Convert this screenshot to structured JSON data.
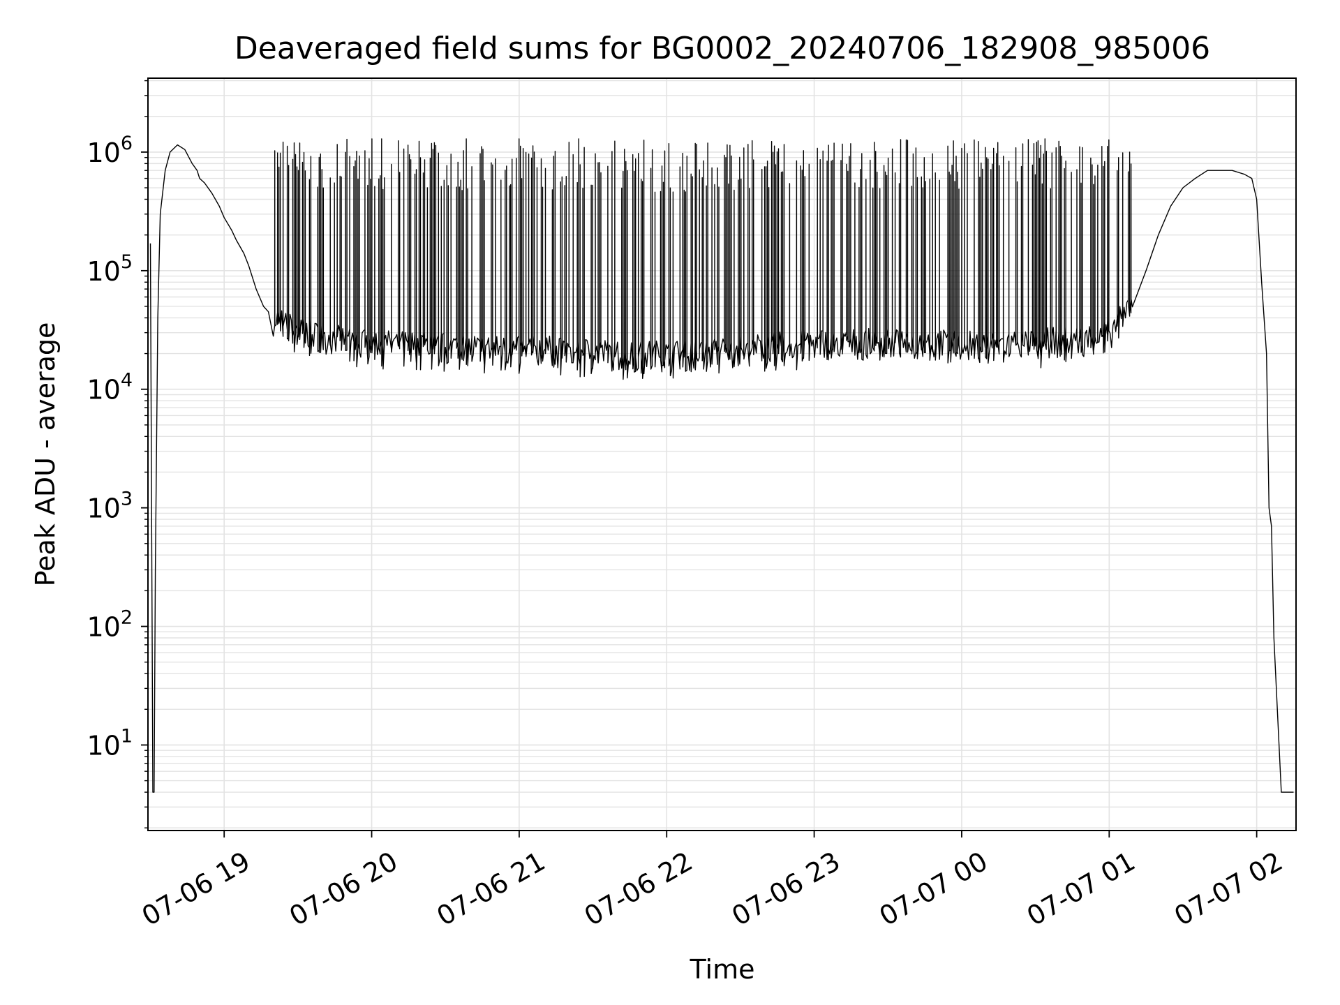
{
  "chart_data": {
    "type": "line",
    "title": "Deaveraged field sums for BG0002_20240706_182908_985006",
    "xlabel": "Time",
    "ylabel": "Peak ADU - average",
    "y_scale": "log",
    "grid": true,
    "grid_minor_y": true,
    "xlim": [
      "2024-07-06 18:29",
      "2024-07-07 02:16"
    ],
    "ylim": [
      1.9,
      4200000
    ],
    "x_ticks": [
      {
        "label": "07-06 19",
        "value": "2024-07-06 19:00"
      },
      {
        "label": "07-06 20",
        "value": "2024-07-06 20:00"
      },
      {
        "label": "07-06 21",
        "value": "2024-07-06 21:00"
      },
      {
        "label": "07-06 22",
        "value": "2024-07-06 22:00"
      },
      {
        "label": "07-06 23",
        "value": "2024-07-06 23:00"
      },
      {
        "label": "07-07 00",
        "value": "2024-07-07 00:00"
      },
      {
        "label": "07-07 01",
        "value": "2024-07-07 01:00"
      },
      {
        "label": "07-07 02",
        "value": "2024-07-07 02:00"
      }
    ],
    "y_ticks": [
      {
        "base": "10",
        "exp": "1",
        "value": 10
      },
      {
        "base": "10",
        "exp": "2",
        "value": 100
      },
      {
        "base": "10",
        "exp": "3",
        "value": 1000
      },
      {
        "base": "10",
        "exp": "4",
        "value": 10000
      },
      {
        "base": "10",
        "exp": "5",
        "value": 100000
      },
      {
        "base": "10",
        "exp": "6",
        "value": 1000000
      }
    ],
    "line_color": "#000000",
    "grid_color": "#e3e3e3",
    "series": [
      {
        "x": [
          "2024-07-06 18:30",
          "2024-07-06 18:31",
          "2024-07-06 18:31:30",
          "2024-07-06 18:32",
          "2024-07-06 18:33",
          "2024-07-06 18:34",
          "2024-07-06 18:36",
          "2024-07-06 18:38",
          "2024-07-06 18:41",
          "2024-07-06 18:44",
          "2024-07-06 18:47",
          "2024-07-06 18:49",
          "2024-07-06 18:50",
          "2024-07-06 18:52",
          "2024-07-06 18:55",
          "2024-07-06 18:58",
          "2024-07-06 19:00",
          "2024-07-06 19:03",
          "2024-07-06 19:05",
          "2024-07-06 19:08",
          "2024-07-06 19:10",
          "2024-07-06 19:13",
          "2024-07-06 19:16",
          "2024-07-06 19:18",
          "2024-07-06 19:20",
          "2024-07-06 19:22",
          "2024-07-06 19:25",
          "2024-07-06 19:30",
          "2024-07-06 19:35",
          "2024-07-06 19:40",
          "2024-07-06 19:45",
          "2024-07-06 19:50",
          "2024-07-06 19:55",
          "2024-07-06 20:00",
          "2024-07-06 20:10",
          "2024-07-06 20:20",
          "2024-07-06 20:30",
          "2024-07-06 20:40",
          "2024-07-06 20:50",
          "2024-07-06 21:00",
          "2024-07-06 21:10",
          "2024-07-06 21:20",
          "2024-07-06 21:30",
          "2024-07-06 21:40",
          "2024-07-06 21:50",
          "2024-07-06 22:00",
          "2024-07-06 22:10",
          "2024-07-06 22:20",
          "2024-07-06 22:30",
          "2024-07-06 22:40",
          "2024-07-06 22:50",
          "2024-07-06 23:00",
          "2024-07-06 23:10",
          "2024-07-06 23:20",
          "2024-07-06 23:30",
          "2024-07-06 23:40",
          "2024-07-06 23:50",
          "2024-07-07 00:00",
          "2024-07-07 00:10",
          "2024-07-07 00:20",
          "2024-07-07 00:30",
          "2024-07-07 00:40",
          "2024-07-07 00:50",
          "2024-07-07 01:00",
          "2024-07-07 01:05",
          "2024-07-07 01:10",
          "2024-07-07 01:15",
          "2024-07-07 01:20",
          "2024-07-07 01:25",
          "2024-07-07 01:30",
          "2024-07-07 01:35",
          "2024-07-07 01:40",
          "2024-07-07 01:45",
          "2024-07-07 01:50",
          "2024-07-07 01:55",
          "2024-07-07 01:58",
          "2024-07-07 02:00",
          "2024-07-07 02:02",
          "2024-07-07 02:04",
          "2024-07-07 02:05",
          "2024-07-07 02:06",
          "2024-07-07 02:07",
          "2024-07-07 02:10",
          "2024-07-07 02:13",
          "2024-07-07 02:15"
        ],
        "y": [
          170000,
          4,
          4,
          300,
          40000,
          300000,
          700000,
          1000000,
          1150000,
          1050000,
          800000,
          700000,
          600000,
          550000,
          450000,
          350000,
          280000,
          220000,
          180000,
          140000,
          110000,
          70000,
          50000,
          45000,
          40000,
          38000,
          35000,
          32000,
          30000,
          28000,
          27000,
          26000,
          25000,
          25000,
          24000,
          24000,
          23000,
          23000,
          22000,
          22000,
          22000,
          21000,
          21000,
          20000,
          20000,
          20000,
          20000,
          21000,
          22000,
          23000,
          24000,
          25000,
          25000,
          25000,
          25000,
          25000,
          25000,
          24000,
          24000,
          25000,
          25000,
          26000,
          27000,
          30000,
          40000,
          60000,
          100000,
          200000,
          350000,
          500000,
          600000,
          700000,
          700000,
          700000,
          650000,
          600000,
          400000,
          80000,
          20000,
          1000,
          700,
          80,
          4,
          4,
          4
        ]
      }
    ],
    "spikes": {
      "x_start": "2024-07-06 19:20",
      "x_end": "2024-07-07 01:10",
      "count": 620,
      "y_max": 1300000
    }
  }
}
